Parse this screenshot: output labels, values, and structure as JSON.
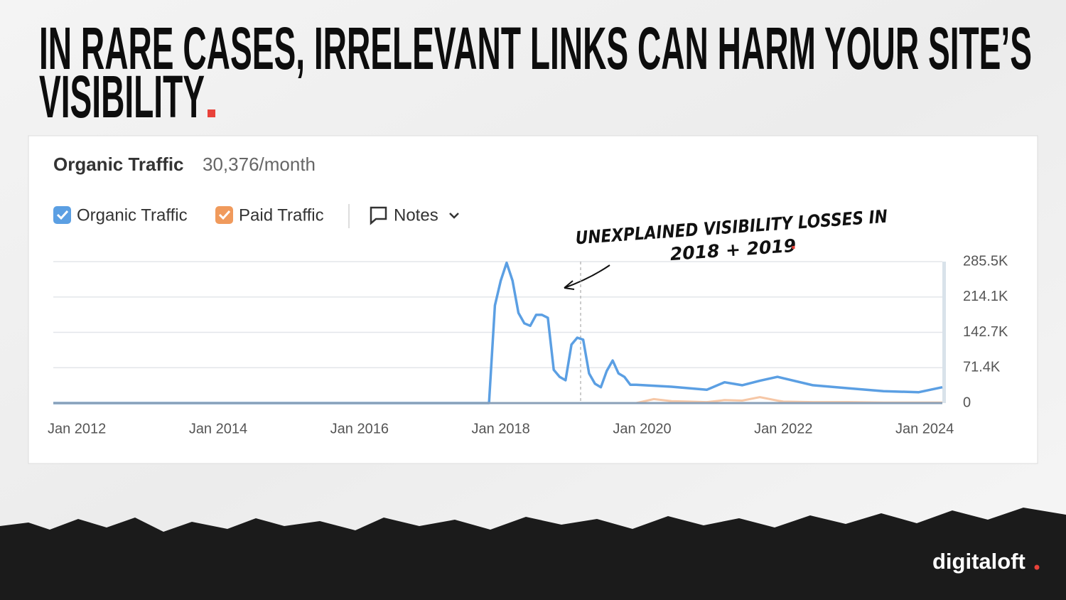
{
  "headline": [
    "IN RARE CASES, IRRELEVANT LINKS CAN HARM YOUR SITE’S",
    "VISIBILITY"
  ],
  "annotation": [
    "Unexplained visibility losses in",
    "2018 + 2019"
  ],
  "brand": "digitaloft",
  "chart_data": {
    "type": "line",
    "title": "Organic Traffic",
    "subtitle": "30,376/month",
    "notes_label": "Notes",
    "x": [
      "2011-09",
      "2017-11",
      "2017-12",
      "2018-01",
      "2018-02",
      "2018-03",
      "2018-04",
      "2018-05",
      "2018-06",
      "2018-07",
      "2018-08",
      "2018-09",
      "2018-10",
      "2018-11",
      "2018-12",
      "2019-01",
      "2019-02",
      "2019-03",
      "2019-04",
      "2019-05",
      "2019-06",
      "2019-07",
      "2019-08",
      "2019-09",
      "2019-10",
      "2019-11",
      "2019-12",
      "2020-03",
      "2020-06",
      "2020-09",
      "2020-12",
      "2021-03",
      "2021-06",
      "2021-09",
      "2021-12",
      "2022-01",
      "2022-06",
      "2022-12",
      "2023-06",
      "2023-12",
      "2024-04"
    ],
    "series": [
      {
        "name": "Organic Traffic",
        "color": "#5b9fe3",
        "values": [
          0,
          0,
          197000,
          247000,
          283000,
          247000,
          182000,
          161000,
          156000,
          178000,
          178000,
          172000,
          67000,
          53000,
          46000,
          118000,
          132000,
          128000,
          60000,
          39000,
          32000,
          65000,
          86000,
          60000,
          53000,
          37000,
          37000,
          35000,
          33000,
          30000,
          27000,
          42000,
          36000,
          45000,
          53000,
          50000,
          36000,
          30000,
          24000,
          22000,
          32000
        ]
      },
      {
        "name": "Paid Traffic",
        "color": "#f6c7a6",
        "values": [
          0,
          0,
          0,
          0,
          0,
          0,
          0,
          0,
          0,
          0,
          0,
          0,
          0,
          0,
          0,
          0,
          0,
          0,
          0,
          0,
          0,
          0,
          0,
          0,
          0,
          0,
          0,
          8000,
          4000,
          3000,
          2000,
          6000,
          5000,
          12000,
          5000,
          3000,
          2000,
          2000,
          1000,
          1000,
          1000
        ]
      }
    ],
    "xlim": [
      "2011-09",
      "2024-04"
    ],
    "xticks": [
      {
        "value": "2012-01",
        "label": "Jan 2012"
      },
      {
        "value": "2014-01",
        "label": "Jan 2014"
      },
      {
        "value": "2016-01",
        "label": "Jan 2016"
      },
      {
        "value": "2018-01",
        "label": "Jan 2018"
      },
      {
        "value": "2020-01",
        "label": "Jan 2020"
      },
      {
        "value": "2022-01",
        "label": "Jan 2022"
      },
      {
        "value": "2024-01",
        "label": "Jan 2024"
      }
    ],
    "ylim": [
      0,
      285500
    ],
    "yticks": [
      0,
      {
        "value": 71400,
        "label": "71.4K"
      },
      {
        "value": 142700,
        "label": "142.7K"
      },
      {
        "value": 214100,
        "label": "214.1K"
      },
      {
        "value": 285500,
        "label": "285.5K"
      }
    ],
    "grid": true
  }
}
